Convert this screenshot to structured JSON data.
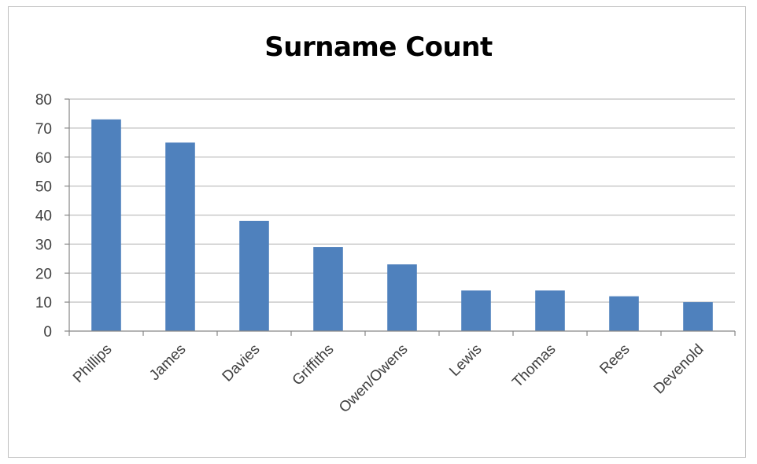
{
  "chart_data": {
    "type": "bar",
    "title": "Surname Count",
    "xlabel": "",
    "ylabel": "",
    "categories": [
      "Phillips",
      "James",
      "Davies",
      "Griffiths",
      "Owen/Owens",
      "Lewis",
      "Thomas",
      "Rees",
      "Devenold"
    ],
    "values": [
      73,
      65,
      38,
      29,
      23,
      14,
      14,
      12,
      10
    ],
    "ylim": [
      0,
      80
    ],
    "yticks": [
      0,
      10,
      20,
      30,
      40,
      50,
      60,
      70,
      80
    ],
    "grid": true,
    "legend": "none",
    "bar_color": "#4f81bd",
    "grid_color": "#bfbfbf"
  }
}
